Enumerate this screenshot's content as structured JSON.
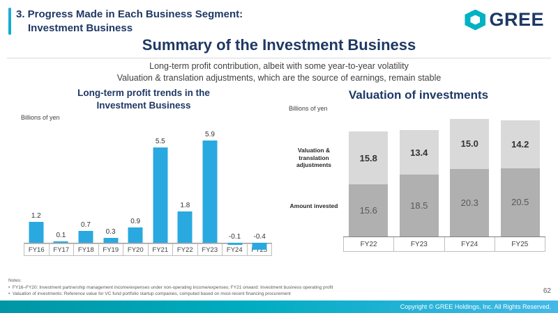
{
  "header": {
    "title_line1": "3. Progress Made in Each Business Segment:",
    "title_line2": "Investment Business",
    "logo_text": "GREE"
  },
  "summary": {
    "title": "Summary of the Investment Business",
    "subtitle1": "Long-term profit contribution, albeit with some year-to-year volatility",
    "subtitle2": "Valuation & translation adjustments, which are the source of earnings, remain stable"
  },
  "chart_data": [
    {
      "type": "bar",
      "title": "Long-term profit trends in the Investment Business",
      "unit_label": "Billions of yen",
      "categories": [
        "FY16",
        "FY17",
        "FY18",
        "FY19",
        "FY20",
        "FY21",
        "FY22",
        "FY23",
        "FY24",
        "FY25"
      ],
      "values": [
        1.2,
        0.1,
        0.7,
        0.3,
        0.9,
        5.5,
        1.8,
        5.9,
        -0.1,
        -0.4
      ],
      "bar_color": "#29a9e0",
      "ylim": [
        -1,
        6.5
      ],
      "grid": false,
      "value_labels": true
    },
    {
      "type": "bar",
      "stacked": true,
      "title": "Valuation of investments",
      "unit_label": "Billions of yen",
      "categories": [
        "FY22",
        "FY23",
        "FY24",
        "FY25"
      ],
      "series": [
        {
          "name": "Amount invested",
          "values": [
            15.6,
            18.5,
            20.3,
            20.5
          ],
          "color": "#b0b0b0"
        },
        {
          "name": "Valuation & translation adjustments",
          "values": [
            15.8,
            13.4,
            15.0,
            14.2
          ],
          "color": "#d9d9d9"
        }
      ],
      "ylim": [
        0,
        36
      ],
      "grid": false,
      "value_labels": true
    }
  ],
  "notes": {
    "label": "Notes:",
    "items": [
      "FY16–FY20: Investment partnership management income/expenses under non-operating income/expenses; FY21 onward: Investment business operating profit",
      "Valuation of investments: Reference value for VC fund portfolio startup companies, computed based on most-recent financing procurement"
    ]
  },
  "footer": {
    "page_number": "62",
    "copyright": "Copyright © GREE Holdings, Inc. All Rights Reserved."
  },
  "colors": {
    "navy": "#1f3864",
    "teal": "#00b2c3",
    "bar_blue": "#29a9e0",
    "gray_light": "#d9d9d9",
    "gray_dark": "#b0b0b0"
  }
}
